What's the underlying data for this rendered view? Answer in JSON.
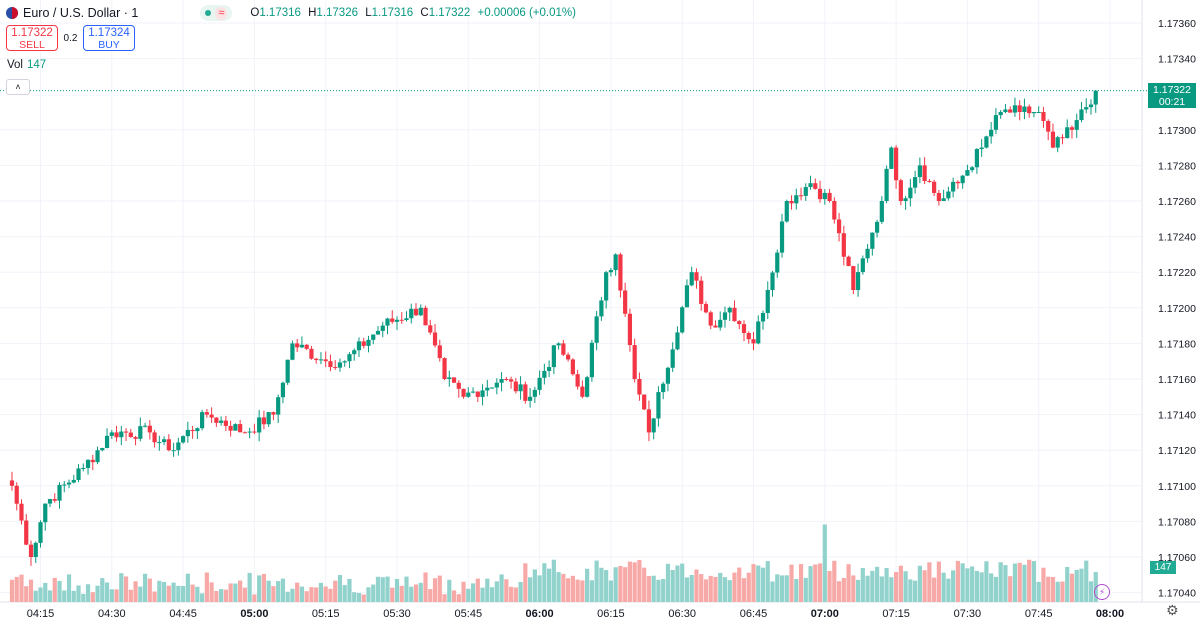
{
  "legend": {
    "title": "Euro / U.S. Dollar · 1",
    "wave": "≈",
    "o_key": "O",
    "o_val": "1.17316",
    "h_key": "H",
    "h_val": "1.17326",
    "l_key": "L",
    "l_val": "1.17316",
    "c_key": "C",
    "c_val": "1.17322",
    "change": "+0.00006 (+0.01%)"
  },
  "trade": {
    "sell_price": "1.17322",
    "sell_label": "SELL",
    "spread": "0.2",
    "buy_price": "1.17324",
    "buy_label": "BUY"
  },
  "volume": {
    "label": "Vol",
    "value": "147"
  },
  "collapse_icon": "˄",
  "last_price": {
    "price": "1.17322",
    "countdown": "00:21"
  },
  "colors": {
    "up": "#089981",
    "down": "#f23645",
    "up_vol": "#92d2cc",
    "down_vol": "#f7a9a7",
    "grid": "#f0f3fa"
  },
  "icons": {
    "bolt": "⚡",
    "settings": "⚙"
  },
  "chart_data": {
    "type": "candlestick",
    "symbol": "EUR/USD",
    "interval": "1 minute",
    "price_ticks": [
      "1.17360",
      "1.17340",
      "1.17300",
      "1.17280",
      "1.17260",
      "1.17240",
      "1.17220",
      "1.17200",
      "1.17180",
      "1.17160",
      "1.17140",
      "1.17120",
      "1.17100",
      "1.17080",
      "1.17060",
      "1.17040"
    ],
    "ylim": [
      1.1704,
      1.1737
    ],
    "time_ticks": [
      "04:15",
      "04:30",
      "04:45",
      "05:00",
      "05:15",
      "05:30",
      "05:45",
      "06:00",
      "06:15",
      "06:30",
      "06:45",
      "07:00",
      "07:15",
      "07:30",
      "07:45",
      "08:00"
    ],
    "bold_ticks": [
      "05:00",
      "06:00",
      "07:00",
      "08:00"
    ],
    "last_price": 1.17322,
    "anchors": [
      {
        "time": "04:09",
        "price": 1.171
      },
      {
        "time": "04:13",
        "price": 1.1706
      },
      {
        "time": "04:16",
        "price": 1.1709
      },
      {
        "time": "04:24",
        "price": 1.1711
      },
      {
        "time": "04:30",
        "price": 1.1713
      },
      {
        "time": "04:38",
        "price": 1.1713
      },
      {
        "time": "04:42",
        "price": 1.1712
      },
      {
        "time": "04:50",
        "price": 1.1714
      },
      {
        "time": "04:58",
        "price": 1.1713
      },
      {
        "time": "05:04",
        "price": 1.1714
      },
      {
        "time": "05:08",
        "price": 1.1718
      },
      {
        "time": "05:15",
        "price": 1.1717
      },
      {
        "time": "05:19",
        "price": 1.1717
      },
      {
        "time": "05:27",
        "price": 1.1719
      },
      {
        "time": "05:35",
        "price": 1.172
      },
      {
        "time": "05:40",
        "price": 1.1716
      },
      {
        "time": "05:44",
        "price": 1.1715
      },
      {
        "time": "05:52",
        "price": 1.1716
      },
      {
        "time": "05:58",
        "price": 1.1715
      },
      {
        "time": "06:04",
        "price": 1.1718
      },
      {
        "time": "06:09",
        "price": 1.1715
      },
      {
        "time": "06:14",
        "price": 1.1722
      },
      {
        "time": "06:16",
        "price": 1.1723
      },
      {
        "time": "06:20",
        "price": 1.1716
      },
      {
        "time": "06:23",
        "price": 1.1713
      },
      {
        "time": "06:32",
        "price": 1.1722
      },
      {
        "time": "06:36",
        "price": 1.1719
      },
      {
        "time": "06:40",
        "price": 1.172
      },
      {
        "time": "06:45",
        "price": 1.1718
      },
      {
        "time": "06:48",
        "price": 1.1721
      },
      {
        "time": "06:52",
        "price": 1.1726
      },
      {
        "time": "06:57",
        "price": 1.1727
      },
      {
        "time": "07:01",
        "price": 1.1726
      },
      {
        "time": "07:06",
        "price": 1.1721
      },
      {
        "time": "07:12",
        "price": 1.1726
      },
      {
        "time": "07:14",
        "price": 1.1729
      },
      {
        "time": "07:16",
        "price": 1.1726
      },
      {
        "time": "07:20",
        "price": 1.1728
      },
      {
        "time": "07:24",
        "price": 1.1726
      },
      {
        "time": "07:28",
        "price": 1.1727
      },
      {
        "time": "07:33",
        "price": 1.1729
      },
      {
        "time": "07:37",
        "price": 1.1731
      },
      {
        "time": "07:41",
        "price": 1.1731
      },
      {
        "time": "07:45",
        "price": 1.1731
      },
      {
        "time": "07:48",
        "price": 1.1729
      },
      {
        "time": "07:52",
        "price": 1.173
      },
      {
        "time": "07:57",
        "price": 1.17322
      }
    ],
    "volume_last": 147,
    "volume_spike_time": "07:00"
  }
}
